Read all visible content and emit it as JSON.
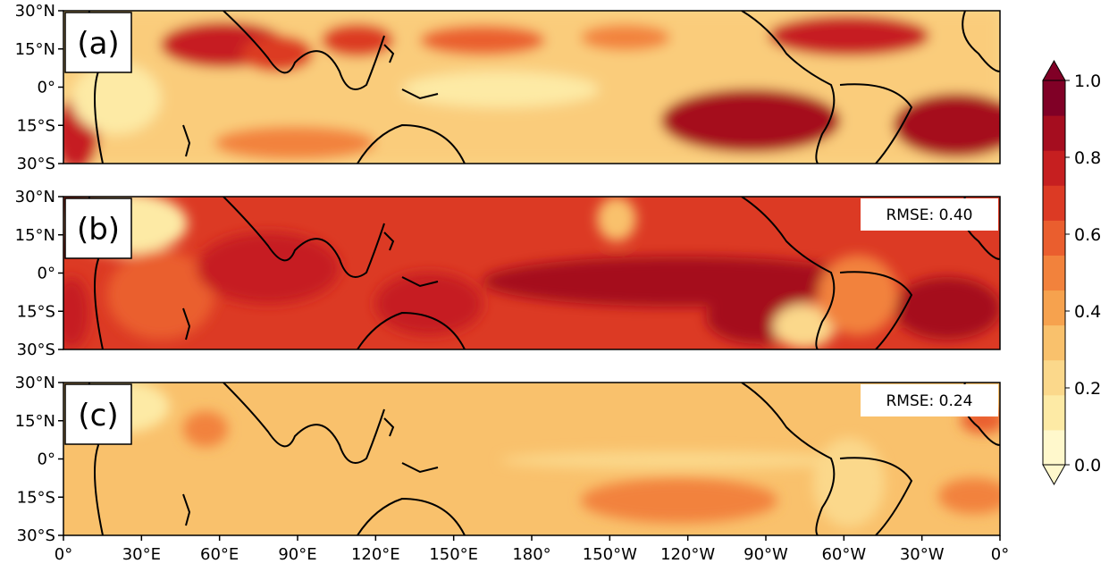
{
  "panels": [
    {
      "label": "(a)",
      "rmse": ""
    },
    {
      "label": "(b)",
      "rmse": "RMSE: 0.40"
    },
    {
      "label": "(c)",
      "rmse": "RMSE: 0.24"
    }
  ],
  "lat_ticks": [
    "30°N",
    "15°N",
    "0°",
    "15°S",
    "30°S"
  ],
  "lon_ticks": [
    "0°",
    "30°E",
    "60°E",
    "90°E",
    "120°E",
    "150°E",
    "180°",
    "150°W",
    "120°W",
    "90°W",
    "60°W",
    "30°W",
    "0°"
  ],
  "colorbar": {
    "ticks": [
      "0.0",
      "0.2",
      "0.4",
      "0.6",
      "0.8",
      "1.0"
    ],
    "colors": [
      "#fff8cc",
      "#fdeaa5",
      "#fbd88b",
      "#f9c16c",
      "#f6a24e",
      "#f2823c",
      "#ea5e2e",
      "#dc3a24",
      "#c61f20",
      "#a50d1f",
      "#800026"
    ]
  }
}
